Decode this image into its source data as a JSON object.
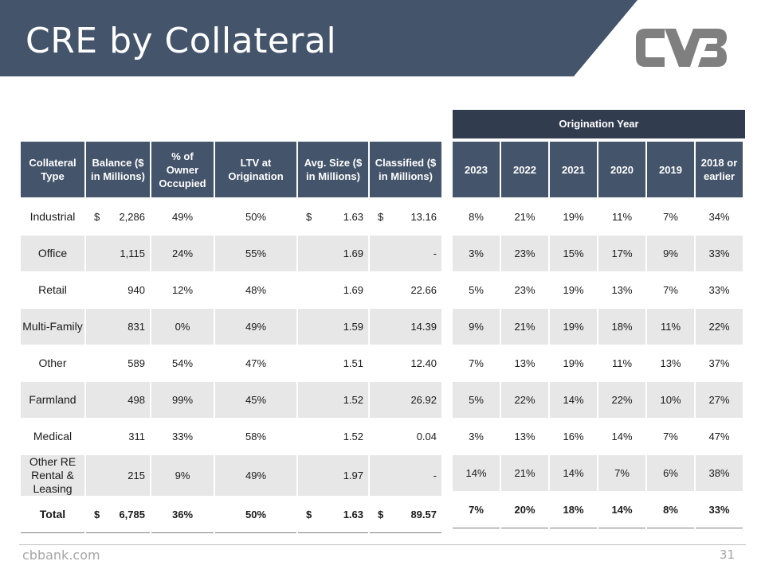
{
  "title": "CRE by Collateral",
  "logo_text": "CVB",
  "origination_header": "Origination Year",
  "left_headers": [
    "Collateral Type",
    "Balance ($ in Millions)",
    "% of Owner Occupied",
    "LTV at Origination",
    "Avg. Size ($ in Millions)",
    "Classified ($ in Millions)"
  ],
  "right_headers": [
    "2023",
    "2022",
    "2021",
    "2020",
    "2019",
    "2018 or earlier"
  ],
  "rows": [
    {
      "type": "Industrial",
      "balance_prefix": "$",
      "balance": "2,286",
      "owner": "49%",
      "ltv": "50%",
      "avg_prefix": "$",
      "avg": "1.63",
      "class_prefix": "$",
      "classified": "13.16",
      "years": [
        "8%",
        "21%",
        "19%",
        "11%",
        "7%",
        "34%"
      ]
    },
    {
      "type": "Office",
      "balance_prefix": "",
      "balance": "1,115",
      "owner": "24%",
      "ltv": "55%",
      "avg_prefix": "",
      "avg": "1.69",
      "class_prefix": "",
      "classified": "-",
      "years": [
        "3%",
        "23%",
        "15%",
        "17%",
        "9%",
        "33%"
      ]
    },
    {
      "type": "Retail",
      "balance_prefix": "",
      "balance": "940",
      "owner": "12%",
      "ltv": "48%",
      "avg_prefix": "",
      "avg": "1.69",
      "class_prefix": "",
      "classified": "22.66",
      "years": [
        "5%",
        "23%",
        "19%",
        "13%",
        "7%",
        "33%"
      ]
    },
    {
      "type": "Multi-Family",
      "balance_prefix": "",
      "balance": "831",
      "owner": "0%",
      "ltv": "49%",
      "avg_prefix": "",
      "avg": "1.59",
      "class_prefix": "",
      "classified": "14.39",
      "years": [
        "9%",
        "21%",
        "19%",
        "18%",
        "11%",
        "22%"
      ]
    },
    {
      "type": "Other",
      "balance_prefix": "",
      "balance": "589",
      "owner": "54%",
      "ltv": "47%",
      "avg_prefix": "",
      "avg": "1.51",
      "class_prefix": "",
      "classified": "12.40",
      "years": [
        "7%",
        "13%",
        "19%",
        "11%",
        "13%",
        "37%"
      ]
    },
    {
      "type": "Farmland",
      "balance_prefix": "",
      "balance": "498",
      "owner": "99%",
      "ltv": "45%",
      "avg_prefix": "",
      "avg": "1.52",
      "class_prefix": "",
      "classified": "26.92",
      "years": [
        "5%",
        "22%",
        "14%",
        "22%",
        "10%",
        "27%"
      ]
    },
    {
      "type": "Medical",
      "balance_prefix": "",
      "balance": "311",
      "owner": "33%",
      "ltv": "58%",
      "avg_prefix": "",
      "avg": "1.52",
      "class_prefix": "",
      "classified": "0.04",
      "years": [
        "3%",
        "13%",
        "16%",
        "14%",
        "7%",
        "47%"
      ]
    },
    {
      "type": "Other RE Rental & Leasing",
      "balance_prefix": "",
      "balance": "215",
      "owner": "9%",
      "ltv": "49%",
      "avg_prefix": "",
      "avg": "1.97",
      "class_prefix": "",
      "classified": "-",
      "years": [
        "14%",
        "21%",
        "14%",
        "7%",
        "6%",
        "38%"
      ]
    }
  ],
  "total": {
    "type": "Total",
    "balance_prefix": "$",
    "balance": "6,785",
    "owner": "36%",
    "ltv": "50%",
    "avg_prefix": "$",
    "avg": "1.63",
    "class_prefix": "$",
    "classified": "89.57",
    "years": [
      "7%",
      "20%",
      "18%",
      "14%",
      "8%",
      "33%"
    ]
  },
  "footer": {
    "url": "cbbank.com",
    "page": "31"
  },
  "colors": {
    "header_bg": "#44546a",
    "title_band": "#44546a",
    "orig_header_bg": "#323c4f",
    "stripe": "#e7e7e7"
  }
}
